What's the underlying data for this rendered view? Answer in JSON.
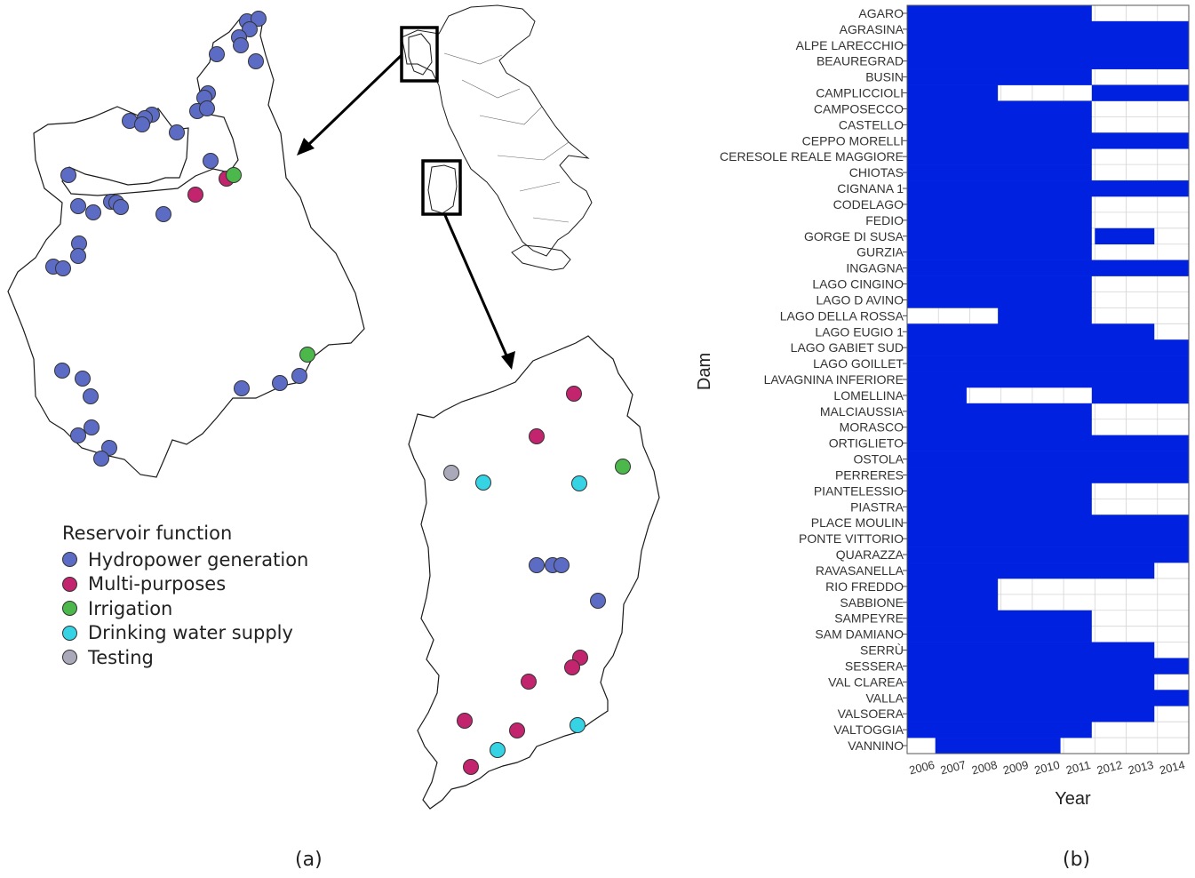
{
  "figure": {
    "label_a": "(a)",
    "label_b": "(b)"
  },
  "legend": {
    "title": "Reservoir function",
    "items": [
      {
        "key": "hydro",
        "label": "Hydropower generation",
        "color": "#5c6bc4"
      },
      {
        "key": "multi",
        "label": "Multi-purposes",
        "color": "#c2256e"
      },
      {
        "key": "irr",
        "label": "Irrigation",
        "color": "#4cb84c"
      },
      {
        "key": "drink",
        "label": "Drinking water supply",
        "color": "#35d3e3"
      },
      {
        "key": "test",
        "label": "Testing",
        "color": "#a9a9b9"
      }
    ]
  },
  "chart_data": {
    "type": "heatmap",
    "xlabel": "Year",
    "ylabel": "Dam",
    "years": [
      "2006",
      "2007",
      "2008",
      "2009",
      "2010",
      "2011",
      "2012",
      "2013",
      "2014"
    ],
    "fill_color": "#0022e0",
    "dams": [
      {
        "name": "AGARO",
        "periods": [
          [
            2006,
            2011.9
          ]
        ]
      },
      {
        "name": "AGRASINA",
        "periods": [
          [
            2006,
            2015
          ]
        ]
      },
      {
        "name": "ALPE LARECCHIO",
        "periods": [
          [
            2006,
            2015
          ]
        ]
      },
      {
        "name": "BEAUREGRAD",
        "periods": [
          [
            2006,
            2015
          ]
        ]
      },
      {
        "name": "BUSIN",
        "periods": [
          [
            2006,
            2011.9
          ]
        ]
      },
      {
        "name": "CAMPLICCIOLI",
        "periods": [
          [
            2006,
            2008.9
          ],
          [
            2011.9,
            2015
          ]
        ]
      },
      {
        "name": "CAMPOSECCO",
        "periods": [
          [
            2006,
            2011.9
          ]
        ]
      },
      {
        "name": "CASTELLO",
        "periods": [
          [
            2006,
            2011.9
          ]
        ]
      },
      {
        "name": "CEPPO MORELLI",
        "periods": [
          [
            2006,
            2015
          ]
        ]
      },
      {
        "name": "CERESOLE REALE MAGGIORE",
        "periods": [
          [
            2006,
            2011.9
          ]
        ]
      },
      {
        "name": "CHIOTAS",
        "periods": [
          [
            2006,
            2011.9
          ]
        ]
      },
      {
        "name": "CIGNANA 1",
        "periods": [
          [
            2006,
            2015
          ]
        ]
      },
      {
        "name": "CODELAGO",
        "periods": [
          [
            2006,
            2011.9
          ]
        ]
      },
      {
        "name": "FEDIO",
        "periods": [
          [
            2006,
            2011.9
          ]
        ]
      },
      {
        "name": "GORGE DI SUSA",
        "periods": [
          [
            2006,
            2011.9
          ],
          [
            2012.0,
            2013.9
          ]
        ]
      },
      {
        "name": "GURZIA",
        "periods": [
          [
            2006,
            2011.9
          ]
        ]
      },
      {
        "name": "INGAGNA",
        "periods": [
          [
            2006,
            2015
          ]
        ]
      },
      {
        "name": "LAGO CINGINO",
        "periods": [
          [
            2006,
            2011.9
          ]
        ]
      },
      {
        "name": "LAGO D AVINO",
        "periods": [
          [
            2006,
            2011.9
          ]
        ]
      },
      {
        "name": "LAGO DELLA ROSSA",
        "periods": [
          [
            2008.9,
            2011.9
          ]
        ]
      },
      {
        "name": "LAGO EUGIO 1",
        "periods": [
          [
            2006,
            2013.9
          ]
        ]
      },
      {
        "name": "LAGO GABIET SUD",
        "periods": [
          [
            2006,
            2015
          ]
        ]
      },
      {
        "name": "LAGO GOILLET",
        "periods": [
          [
            2006,
            2015
          ]
        ]
      },
      {
        "name": "LAVAGNINA INFERIORE",
        "periods": [
          [
            2006,
            2015
          ]
        ]
      },
      {
        "name": "LOMELLINA",
        "periods": [
          [
            2006,
            2007.9
          ],
          [
            2011.9,
            2015
          ]
        ]
      },
      {
        "name": "MALCIAUSSIA",
        "periods": [
          [
            2006,
            2011.9
          ]
        ]
      },
      {
        "name": "MORASCO",
        "periods": [
          [
            2006,
            2011.9
          ]
        ]
      },
      {
        "name": "ORTIGLIETO",
        "periods": [
          [
            2006,
            2015
          ]
        ]
      },
      {
        "name": "OSTOLA",
        "periods": [
          [
            2006,
            2015
          ]
        ]
      },
      {
        "name": "PERRERES",
        "periods": [
          [
            2006,
            2015
          ]
        ]
      },
      {
        "name": "PIANTELESSIO",
        "periods": [
          [
            2006,
            2011.9
          ]
        ]
      },
      {
        "name": "PIASTRA",
        "periods": [
          [
            2006,
            2011.9
          ]
        ]
      },
      {
        "name": "PLACE MOULIN",
        "periods": [
          [
            2006,
            2015
          ]
        ]
      },
      {
        "name": "PONTE VITTORIO",
        "periods": [
          [
            2006,
            2015
          ]
        ]
      },
      {
        "name": "QUARAZZA",
        "periods": [
          [
            2006,
            2015
          ]
        ]
      },
      {
        "name": "RAVASANELLA",
        "periods": [
          [
            2006,
            2013.9
          ]
        ]
      },
      {
        "name": "RIO FREDDO",
        "periods": [
          [
            2006,
            2008.9
          ]
        ]
      },
      {
        "name": "SABBIONE",
        "periods": [
          [
            2006,
            2008.9
          ]
        ]
      },
      {
        "name": "SAMPEYRE",
        "periods": [
          [
            2006,
            2011.9
          ]
        ]
      },
      {
        "name": "SAM DAMIANO",
        "periods": [
          [
            2006,
            2011.9
          ]
        ]
      },
      {
        "name": "SERRÙ",
        "periods": [
          [
            2006,
            2013.9
          ]
        ]
      },
      {
        "name": "SESSERA",
        "periods": [
          [
            2006,
            2015
          ]
        ]
      },
      {
        "name": "VAL CLAREA",
        "periods": [
          [
            2006,
            2013.9
          ]
        ]
      },
      {
        "name": "VALLA",
        "periods": [
          [
            2006,
            2015
          ]
        ]
      },
      {
        "name": "VALSOERA",
        "periods": [
          [
            2006,
            2013.9
          ]
        ]
      },
      {
        "name": "VALTOGGIA",
        "periods": [
          [
            2006,
            2011.9
          ]
        ]
      },
      {
        "name": "VANNINO",
        "periods": [
          [
            2006.9,
            2010.9
          ]
        ]
      }
    ]
  }
}
